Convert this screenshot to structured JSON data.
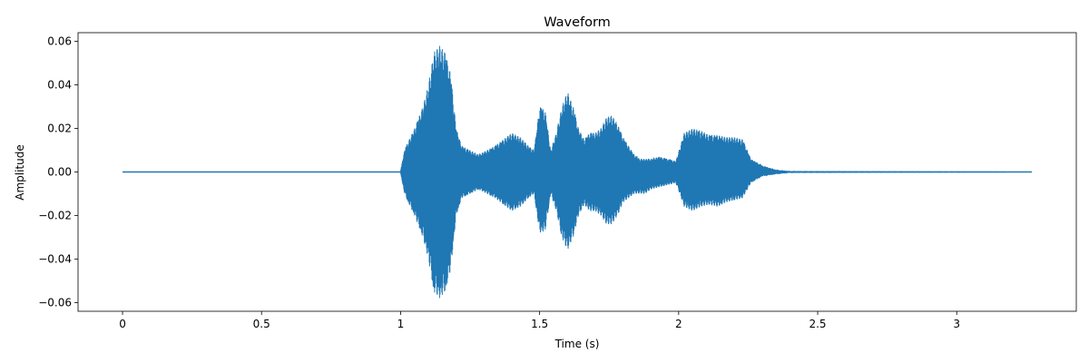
{
  "chart_data": {
    "type": "line",
    "title": "Waveform",
    "xlabel": "Time (s)",
    "ylabel": "Amplitude",
    "xlim": [
      -0.16,
      3.43
    ],
    "ylim": [
      -0.064,
      0.064
    ],
    "x_ticks": [
      0,
      0.5,
      1,
      1.5,
      2,
      2.5,
      3
    ],
    "x_tick_labels": [
      "0",
      "0.5",
      "1",
      "1.5",
      "2",
      "2.5",
      "3"
    ],
    "y_ticks": [
      -0.06,
      -0.04,
      -0.02,
      0.0,
      0.02,
      0.04,
      0.06
    ],
    "y_tick_labels": [
      "−0.06",
      "−0.04",
      "−0.02",
      "0.00",
      "0.02",
      "0.04",
      "0.06"
    ],
    "grid": false,
    "color": "#1f77b4",
    "series": [
      {
        "x_start": 0.0,
        "x_end": 3.27,
        "envelope": {
          "t": [
            0.0,
            1.0,
            1.01,
            1.02,
            1.05,
            1.08,
            1.1,
            1.12,
            1.14,
            1.16,
            1.18,
            1.2,
            1.22,
            1.25,
            1.28,
            1.31,
            1.34,
            1.37,
            1.4,
            1.43,
            1.46,
            1.48,
            1.5,
            1.52,
            1.54,
            1.56,
            1.58,
            1.6,
            1.62,
            1.64,
            1.66,
            1.68,
            1.7,
            1.72,
            1.74,
            1.76,
            1.78,
            1.8,
            1.82,
            1.84,
            1.86,
            1.88,
            1.9,
            1.93,
            1.96,
            1.99,
            2.02,
            2.05,
            2.08,
            2.11,
            2.14,
            2.17,
            2.2,
            2.23,
            2.26,
            2.3,
            2.35,
            2.4,
            3.27
          ],
          "upper": [
            0.0,
            0.0,
            0.008,
            0.012,
            0.02,
            0.03,
            0.04,
            0.055,
            0.058,
            0.055,
            0.045,
            0.02,
            0.012,
            0.01,
            0.008,
            0.01,
            0.012,
            0.015,
            0.018,
            0.016,
            0.012,
            0.01,
            0.03,
            0.028,
            0.01,
            0.018,
            0.03,
            0.037,
            0.03,
            0.02,
            0.015,
            0.018,
            0.018,
            0.02,
            0.025,
            0.026,
            0.022,
            0.016,
            0.012,
            0.008,
            0.006,
            0.006,
            0.006,
            0.007,
            0.006,
            0.005,
            0.018,
            0.02,
            0.019,
            0.017,
            0.017,
            0.016,
            0.016,
            0.015,
            0.006,
            0.003,
            0.001,
            0.0003,
            0.0
          ],
          "lower": [
            0.0,
            0.0,
            -0.008,
            -0.012,
            -0.02,
            -0.03,
            -0.04,
            -0.055,
            -0.058,
            -0.055,
            -0.045,
            -0.02,
            -0.012,
            -0.01,
            -0.008,
            -0.01,
            -0.012,
            -0.015,
            -0.018,
            -0.016,
            -0.012,
            -0.01,
            -0.028,
            -0.027,
            -0.01,
            -0.018,
            -0.03,
            -0.036,
            -0.03,
            -0.02,
            -0.015,
            -0.018,
            -0.018,
            -0.02,
            -0.024,
            -0.024,
            -0.02,
            -0.014,
            -0.012,
            -0.01,
            -0.01,
            -0.01,
            -0.008,
            -0.007,
            -0.006,
            -0.005,
            -0.016,
            -0.018,
            -0.016,
            -0.015,
            -0.016,
            -0.014,
            -0.013,
            -0.012,
            -0.005,
            -0.002,
            -0.001,
            -0.0003,
            0.0
          ]
        }
      }
    ]
  }
}
